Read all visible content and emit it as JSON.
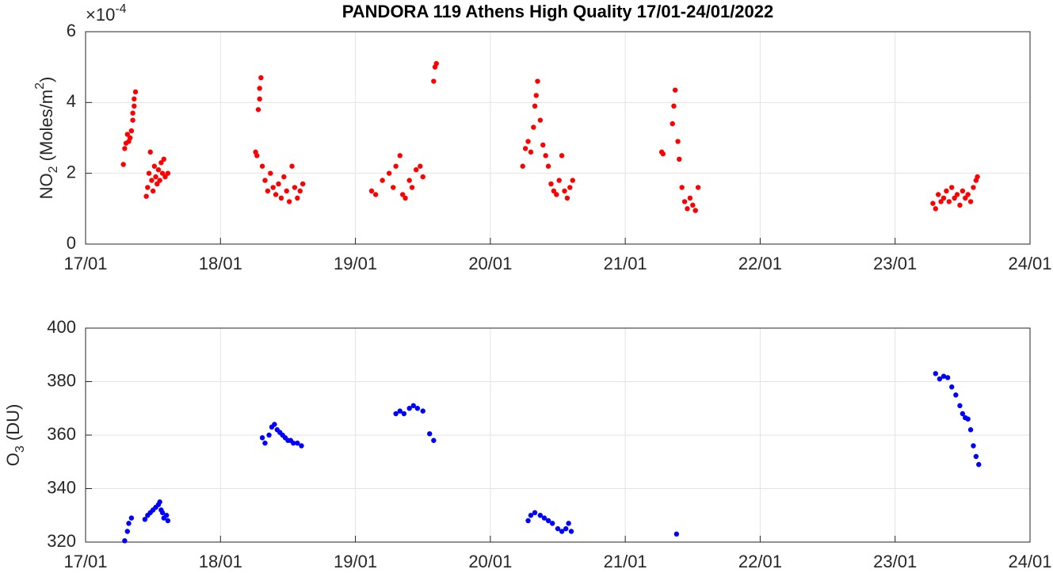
{
  "chart_data": [
    {
      "type": "scatter",
      "title": "PANDORA 119 Athens High Quality 17/01-24/01/2022",
      "ylabel": [
        "NO",
        "2",
        " (Moles/m",
        "2",
        ")"
      ],
      "y_multiplier": {
        "base": "×10",
        "exponent": "-4"
      },
      "color": "#ff0000",
      "grid": true,
      "xlim": [
        17,
        24
      ],
      "xticks": [
        {
          "value": 17,
          "label": "17/01"
        },
        {
          "value": 18,
          "label": "18/01"
        },
        {
          "value": 19,
          "label": "19/01"
        },
        {
          "value": 20,
          "label": "20/01"
        },
        {
          "value": 21,
          "label": "21/01"
        },
        {
          "value": 22,
          "label": "22/01"
        },
        {
          "value": 23,
          "label": "23/01"
        },
        {
          "value": 24,
          "label": "24/01"
        }
      ],
      "ylim": [
        0,
        6
      ],
      "yticks": [
        0,
        2,
        4,
        6
      ],
      "x": [
        17.28,
        17.29,
        17.3,
        17.31,
        17.32,
        17.33,
        17.34,
        17.35,
        17.35,
        17.36,
        17.36,
        17.37,
        17.45,
        17.46,
        17.47,
        17.48,
        17.49,
        17.5,
        17.51,
        17.52,
        17.53,
        17.54,
        17.55,
        17.56,
        17.57,
        17.58,
        17.59,
        17.61,
        18.26,
        18.27,
        18.28,
        18.29,
        18.29,
        18.3,
        18.31,
        18.33,
        18.35,
        18.37,
        18.39,
        18.41,
        18.43,
        18.45,
        18.47,
        18.49,
        18.51,
        18.53,
        18.55,
        18.57,
        18.59,
        18.61,
        19.12,
        19.15,
        19.2,
        19.25,
        19.28,
        19.3,
        19.33,
        19.35,
        19.37,
        19.4,
        19.42,
        19.45,
        19.48,
        19.5,
        19.58,
        19.59,
        19.6,
        20.24,
        20.26,
        20.28,
        20.3,
        20.32,
        20.33,
        20.34,
        20.35,
        20.37,
        20.39,
        20.41,
        20.43,
        20.45,
        20.47,
        20.49,
        20.51,
        20.53,
        20.55,
        20.57,
        20.59,
        20.61,
        21.27,
        21.28,
        21.35,
        21.36,
        21.37,
        21.39,
        21.4,
        21.42,
        21.44,
        21.46,
        21.48,
        21.5,
        21.52,
        21.54,
        23.28,
        23.3,
        23.32,
        23.34,
        23.36,
        23.38,
        23.4,
        23.42,
        23.44,
        23.46,
        23.48,
        23.5,
        23.52,
        23.54,
        23.56,
        23.58,
        23.6,
        23.61
      ],
      "values": [
        2.25,
        2.7,
        2.85,
        3.1,
        2.9,
        3.0,
        3.2,
        3.5,
        3.7,
        3.9,
        4.1,
        4.3,
        1.35,
        1.6,
        2.0,
        2.6,
        1.8,
        1.5,
        2.2,
        1.9,
        1.7,
        2.1,
        1.8,
        2.3,
        2.0,
        2.4,
        1.9,
        2.0,
        2.6,
        2.5,
        3.8,
        4.1,
        4.4,
        4.7,
        2.2,
        1.8,
        1.5,
        2.0,
        1.6,
        1.4,
        1.7,
        1.3,
        1.9,
        1.5,
        1.2,
        2.2,
        1.6,
        1.3,
        1.5,
        1.7,
        1.5,
        1.4,
        1.8,
        2.0,
        1.6,
        2.2,
        2.5,
        1.4,
        1.3,
        1.8,
        1.6,
        2.1,
        2.2,
        1.9,
        4.6,
        5.0,
        5.1,
        2.2,
        2.7,
        2.9,
        2.6,
        3.3,
        3.9,
        4.2,
        4.6,
        3.5,
        2.8,
        2.5,
        2.2,
        1.7,
        1.5,
        1.4,
        1.8,
        2.5,
        1.5,
        1.3,
        1.6,
        1.8,
        2.6,
        2.55,
        3.4,
        3.9,
        4.35,
        2.9,
        2.4,
        1.6,
        1.2,
        1.0,
        1.3,
        1.1,
        0.95,
        1.6,
        1.15,
        1.0,
        1.4,
        1.2,
        1.3,
        1.5,
        1.2,
        1.6,
        1.3,
        1.4,
        1.1,
        1.5,
        1.3,
        1.4,
        1.2,
        1.6,
        1.8,
        1.9
      ]
    },
    {
      "type": "scatter",
      "ylabel": [
        "O",
        "3",
        " (DU)"
      ],
      "color": "#0000ff",
      "grid": true,
      "xlim": [
        17,
        24
      ],
      "xticks": [
        {
          "value": 17,
          "label": "17/01"
        },
        {
          "value": 18,
          "label": "18/01"
        },
        {
          "value": 19,
          "label": "19/01"
        },
        {
          "value": 20,
          "label": "20/01"
        },
        {
          "value": 21,
          "label": "21/01"
        },
        {
          "value": 22,
          "label": "22/01"
        },
        {
          "value": 23,
          "label": "23/01"
        },
        {
          "value": 24,
          "label": "24/01"
        }
      ],
      "ylim": [
        320,
        400
      ],
      "yticks": [
        320,
        340,
        360,
        380,
        400
      ],
      "x": [
        17.29,
        17.31,
        17.32,
        17.34,
        17.44,
        17.46,
        17.48,
        17.5,
        17.52,
        17.54,
        17.55,
        17.56,
        17.57,
        17.58,
        17.6,
        17.61,
        18.31,
        18.33,
        18.36,
        18.38,
        18.4,
        18.42,
        18.44,
        18.46,
        18.48,
        18.5,
        18.52,
        18.54,
        18.57,
        18.6,
        19.3,
        19.33,
        19.36,
        19.4,
        19.43,
        19.46,
        19.5,
        19.55,
        19.58,
        20.28,
        20.3,
        20.33,
        20.37,
        20.4,
        20.43,
        20.46,
        20.5,
        20.53,
        20.56,
        20.58,
        20.6,
        21.38,
        23.3,
        23.33,
        23.36,
        23.39,
        23.42,
        23.45,
        23.48,
        23.5,
        23.52,
        23.54,
        23.56,
        23.58,
        23.6,
        23.62
      ],
      "values": [
        320.5,
        324,
        327,
        329,
        328.5,
        330,
        331,
        332,
        333,
        334,
        335,
        332,
        331,
        329,
        330,
        328,
        359,
        357,
        360,
        363,
        364,
        362,
        361,
        360,
        359,
        358,
        358,
        357,
        357,
        356,
        368,
        369,
        368,
        370,
        371,
        370,
        369,
        360.5,
        358,
        328,
        330,
        331,
        330,
        329,
        328,
        327,
        325,
        324,
        325,
        327,
        324,
        323,
        383,
        381,
        382,
        381.5,
        378,
        375,
        371,
        368,
        366.5,
        366,
        362,
        356,
        352,
        349
      ]
    }
  ]
}
